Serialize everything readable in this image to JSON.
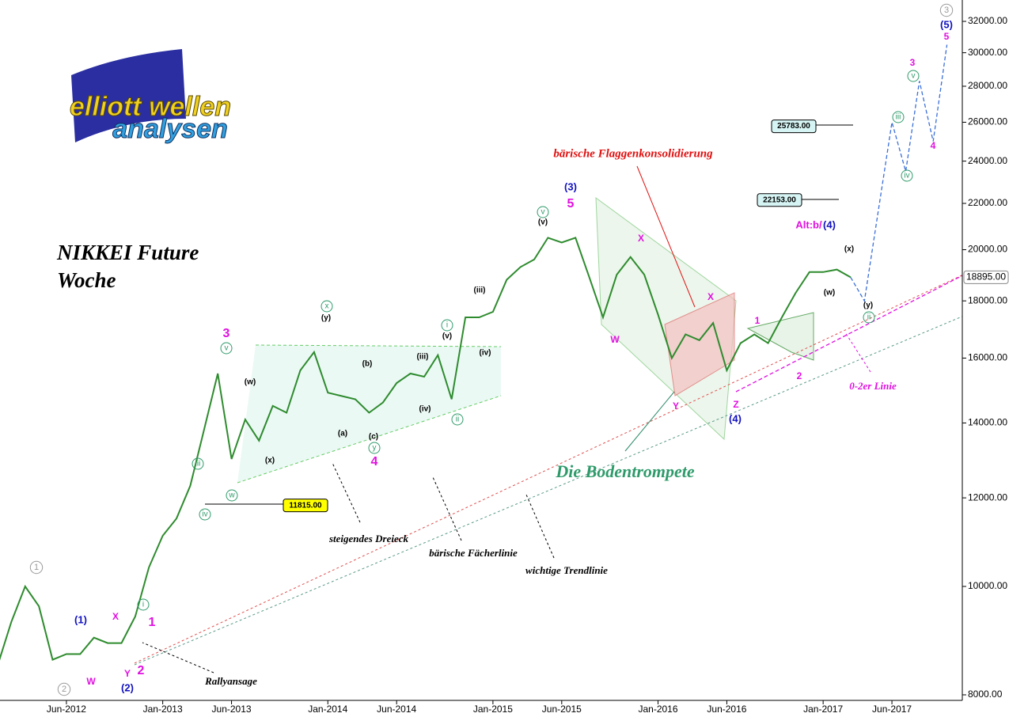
{
  "chart_data": {
    "type": "line",
    "title": "NIKKEI Future",
    "subtitle": "Woche",
    "logo": [
      "elliott wellen",
      "analysen"
    ],
    "log_scale": true,
    "ylim": [
      8000,
      32000
    ],
    "yticks": [
      {
        "value": 8000,
        "label": "8000.00"
      },
      {
        "value": 10000,
        "label": "10000.00"
      },
      {
        "value": 12000,
        "label": "12000.00"
      },
      {
        "value": 14000,
        "label": "14000.00"
      },
      {
        "value": 16000,
        "label": "16000.00"
      },
      {
        "value": 18000,
        "label": "18000.00"
      },
      {
        "value": 20000,
        "label": "20000.00"
      },
      {
        "value": 22000,
        "label": "22000.00"
      },
      {
        "value": 24000,
        "label": "24000.00"
      },
      {
        "value": 26000,
        "label": "26000.00"
      },
      {
        "value": 28000,
        "label": "28000.00"
      },
      {
        "value": 30000,
        "label": "30000.00"
      },
      {
        "value": 32000,
        "label": "32000.00"
      }
    ],
    "xlim": [
      "2012-01",
      "2017-11"
    ],
    "xticks": [
      {
        "value": "2012-06",
        "label": "Jun-2012"
      },
      {
        "value": "2013-01",
        "label": "Jan-2013"
      },
      {
        "value": "2013-06",
        "label": "Jun-2013"
      },
      {
        "value": "2014-01",
        "label": "Jan-2014"
      },
      {
        "value": "2014-06",
        "label": "Jun-2014"
      },
      {
        "value": "2015-01",
        "label": "Jan-2015"
      },
      {
        "value": "2015-06",
        "label": "Jun-2015"
      },
      {
        "value": "2016-01",
        "label": "Jan-2016"
      },
      {
        "value": "2016-06",
        "label": "Jun-2016"
      },
      {
        "value": "2017-01",
        "label": "Jan-2017"
      },
      {
        "value": "2017-06",
        "label": "Jun-2017"
      }
    ],
    "x": [
      "2012-01",
      "2012-02",
      "2012-03",
      "2012-04",
      "2012-05",
      "2012-06",
      "2012-07",
      "2012-08",
      "2012-09",
      "2012-10",
      "2012-11",
      "2012-12",
      "2013-01",
      "2013-02",
      "2013-03",
      "2013-04",
      "2013-05",
      "2013-06",
      "2013-07",
      "2013-08",
      "2013-09",
      "2013-10",
      "2013-11",
      "2013-12",
      "2014-01",
      "2014-02",
      "2014-03",
      "2014-04",
      "2014-05",
      "2014-06",
      "2014-07",
      "2014-08",
      "2014-09",
      "2014-10",
      "2014-11",
      "2014-12",
      "2015-01",
      "2015-02",
      "2015-03",
      "2015-04",
      "2015-05",
      "2015-06",
      "2015-07",
      "2015-08",
      "2015-09",
      "2015-10",
      "2015-11",
      "2015-12",
      "2016-01",
      "2016-02",
      "2016-03",
      "2016-04",
      "2016-05",
      "2016-06",
      "2016-07",
      "2016-08",
      "2016-09",
      "2016-10",
      "2016-11",
      "2016-12",
      "2017-01",
      "2017-02",
      "2017-03"
    ],
    "series": [
      {
        "color": "#2e8b2e",
        "values": [
          8500,
          9300,
          10000,
          9600,
          8600,
          8700,
          8700,
          9000,
          8900,
          8900,
          9400,
          10400,
          11100,
          11500,
          12300,
          13800,
          15500,
          13000,
          14100,
          13500,
          14500,
          14300,
          15600,
          16200,
          14900,
          14800,
          14700,
          14300,
          14600,
          15200,
          15500,
          15400,
          16100,
          14700,
          17400,
          17400,
          17600,
          18800,
          19300,
          19600,
          20500,
          20300,
          20500,
          18900,
          17400,
          19000,
          19700,
          19000,
          17500,
          16000,
          16800,
          16600,
          17200,
          15600,
          16500,
          16800,
          16500,
          17400,
          18300,
          19100,
          19100,
          19200,
          18895
        ]
      },
      {
        "color": "#3a6fd8",
        "dashed": true,
        "x": [
          "2017-03",
          "2017-04",
          "2017-06",
          "2017-07",
          "2017-08",
          "2017-09",
          "2017-10"
        ],
        "values": [
          18895,
          18000,
          26000,
          23500,
          28300,
          25000,
          30500
        ]
      }
    ],
    "price_boxes": [
      {
        "value": 25783,
        "label": "25783.00"
      },
      {
        "value": 22153,
        "label": "22153.00"
      },
      {
        "value": 11815,
        "label": "11815.00"
      },
      {
        "value": 18895,
        "label": "18895.00"
      }
    ],
    "annotations": [
      {
        "text": "bärische Flaggenkonsolidierung",
        "color": "#e01010"
      },
      {
        "text": "Die Bodentrompete",
        "color": "#2e9a6a"
      },
      {
        "text": "steigendes Dreieck",
        "color": "#000000"
      },
      {
        "text": "bärische Fächerlinie",
        "color": "#000000"
      },
      {
        "text": "wichtige Trendlinie",
        "color": "#000000"
      },
      {
        "text": "Rallyansage",
        "color": "#000000"
      },
      {
        "text": "0-2er Linie",
        "color": "#e010e0"
      },
      {
        "text": "Alt:b/",
        "color": "#e010e0"
      },
      {
        "text": "(4)",
        "color": "#1010c0"
      },
      {
        "text": "(1)",
        "color": "#1010c0"
      },
      {
        "text": "(2)",
        "color": "#1010c0"
      },
      {
        "text": "(3)",
        "color": "#1010c0"
      },
      {
        "text": "(4)",
        "color": "#1010c0"
      },
      {
        "text": "(5)",
        "color": "#1010c0"
      },
      {
        "text": "1",
        "color": "#e010e0"
      },
      {
        "text": "2",
        "color": "#e010e0"
      },
      {
        "text": "3",
        "color": "#e010e0"
      },
      {
        "text": "4",
        "color": "#e010e0"
      },
      {
        "text": "5",
        "color": "#e010e0"
      },
      {
        "text": "W",
        "color": "#e010e0"
      },
      {
        "text": "X",
        "color": "#e010e0"
      },
      {
        "text": "Y",
        "color": "#e010e0"
      },
      {
        "text": "W",
        "color": "#e010e0"
      },
      {
        "text": "X",
        "color": "#e010e0"
      },
      {
        "text": "X",
        "color": "#e010e0"
      },
      {
        "text": "Y",
        "color": "#e010e0"
      },
      {
        "text": "Z",
        "color": "#e010e0"
      },
      {
        "text": "1",
        "color": "#e010e0"
      },
      {
        "text": "2",
        "color": "#e010e0"
      },
      {
        "text": "3",
        "color": "#e010e0"
      },
      {
        "text": "4",
        "color": "#e010e0"
      },
      {
        "text": "5",
        "color": "#e010e0"
      },
      {
        "text": "(w)",
        "color": "#000000"
      },
      {
        "text": "(x)",
        "color": "#000000"
      },
      {
        "text": "(y)",
        "color": "#000000"
      },
      {
        "text": "(a)",
        "color": "#000000"
      },
      {
        "text": "(b)",
        "color": "#000000"
      },
      {
        "text": "(c)",
        "color": "#000000"
      },
      {
        "text": "(iii)",
        "color": "#000000"
      },
      {
        "text": "(iv)",
        "color": "#000000"
      },
      {
        "text": "(v)",
        "color": "#000000"
      },
      {
        "text": "(iii)",
        "color": "#000000"
      },
      {
        "text": "(iv)",
        "color": "#000000"
      },
      {
        "text": "(v)",
        "color": "#000000"
      },
      {
        "text": "(w)",
        "color": "#000000"
      },
      {
        "text": "(x)",
        "color": "#000000"
      },
      {
        "text": "(y)",
        "color": "#000000"
      },
      {
        "text": "1",
        "color": "#999999",
        "circled": true
      },
      {
        "text": "2",
        "color": "#999999",
        "circled": true
      },
      {
        "text": "3",
        "color": "#999999",
        "circled": true
      },
      {
        "text": "v",
        "color": "#2e9a6a",
        "circled": true
      },
      {
        "text": "w",
        "color": "#2e9a6a",
        "circled": true
      },
      {
        "text": "iv",
        "color": "#2e9a6a",
        "circled": true
      },
      {
        "text": "x",
        "color": "#2e9a6a",
        "circled": true
      },
      {
        "text": "y",
        "color": "#2e9a6a",
        "circled": true
      },
      {
        "text": "i",
        "color": "#2e9a6a",
        "circled": true
      },
      {
        "text": "ii",
        "color": "#2e9a6a",
        "circled": true
      },
      {
        "text": "iii",
        "color": "#2e9a6a",
        "circled": true
      },
      {
        "text": "v",
        "color": "#2e9a6a",
        "circled": true
      },
      {
        "text": "i",
        "color": "#2e9a6a",
        "circled": true
      },
      {
        "text": "iii",
        "color": "#2e9a6a",
        "circled": true
      },
      {
        "text": "iv",
        "color": "#2e9a6a",
        "circled": true
      },
      {
        "text": "v",
        "color": "#2e9a6a",
        "circled": true
      },
      {
        "text": "ii",
        "color": "#2e9a6a",
        "circled": true
      }
    ]
  }
}
